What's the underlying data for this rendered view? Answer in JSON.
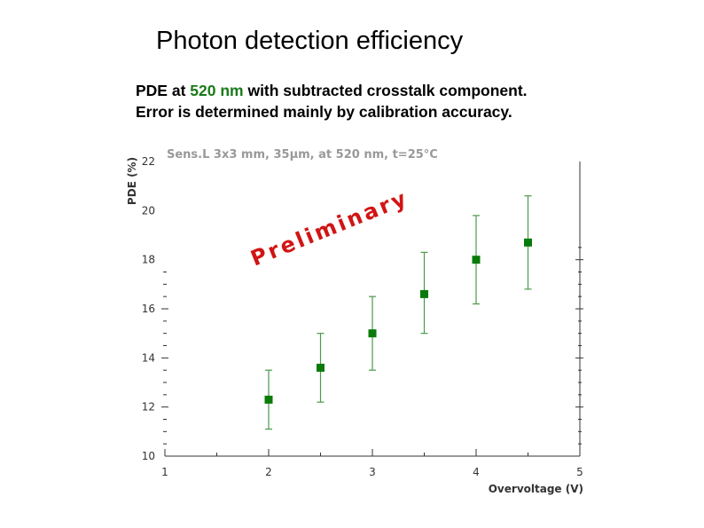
{
  "slide": {
    "title": "Photon detection efficiency",
    "line1_prefix": "PDE at ",
    "line1_highlight": "520 nm",
    "line1_suffix": " with subtracted crosstalk component.",
    "line2": "Error is determined mainly by calibration accuracy.",
    "highlight_color": "#1a7a1a"
  },
  "chart_data": {
    "type": "scatter",
    "title": "Sens.L 3x3 mm, 35μm, at 520 nm, t=25°C",
    "xlabel": "Overvoltage (V)",
    "ylabel": "PDE (%)",
    "xlim": [
      1,
      5
    ],
    "ylim": [
      10,
      22
    ],
    "x_ticks": [
      1,
      2,
      3,
      4,
      5
    ],
    "y_ticks": [
      10,
      12,
      14,
      16,
      18,
      20,
      22
    ],
    "watermark": "Preliminary",
    "marker_color": "#0a7a0a",
    "errorbar_color": "#4a9a4a",
    "series": [
      {
        "x": [
          2.0,
          2.5,
          3.0,
          3.5,
          4.0,
          4.5
        ],
        "y": [
          12.3,
          13.6,
          15.0,
          16.6,
          18.0,
          18.7
        ],
        "y_err_low": [
          1.2,
          1.4,
          1.5,
          1.6,
          1.8,
          1.9
        ],
        "y_err_high": [
          1.2,
          1.4,
          1.5,
          1.7,
          1.8,
          1.9
        ]
      }
    ]
  }
}
